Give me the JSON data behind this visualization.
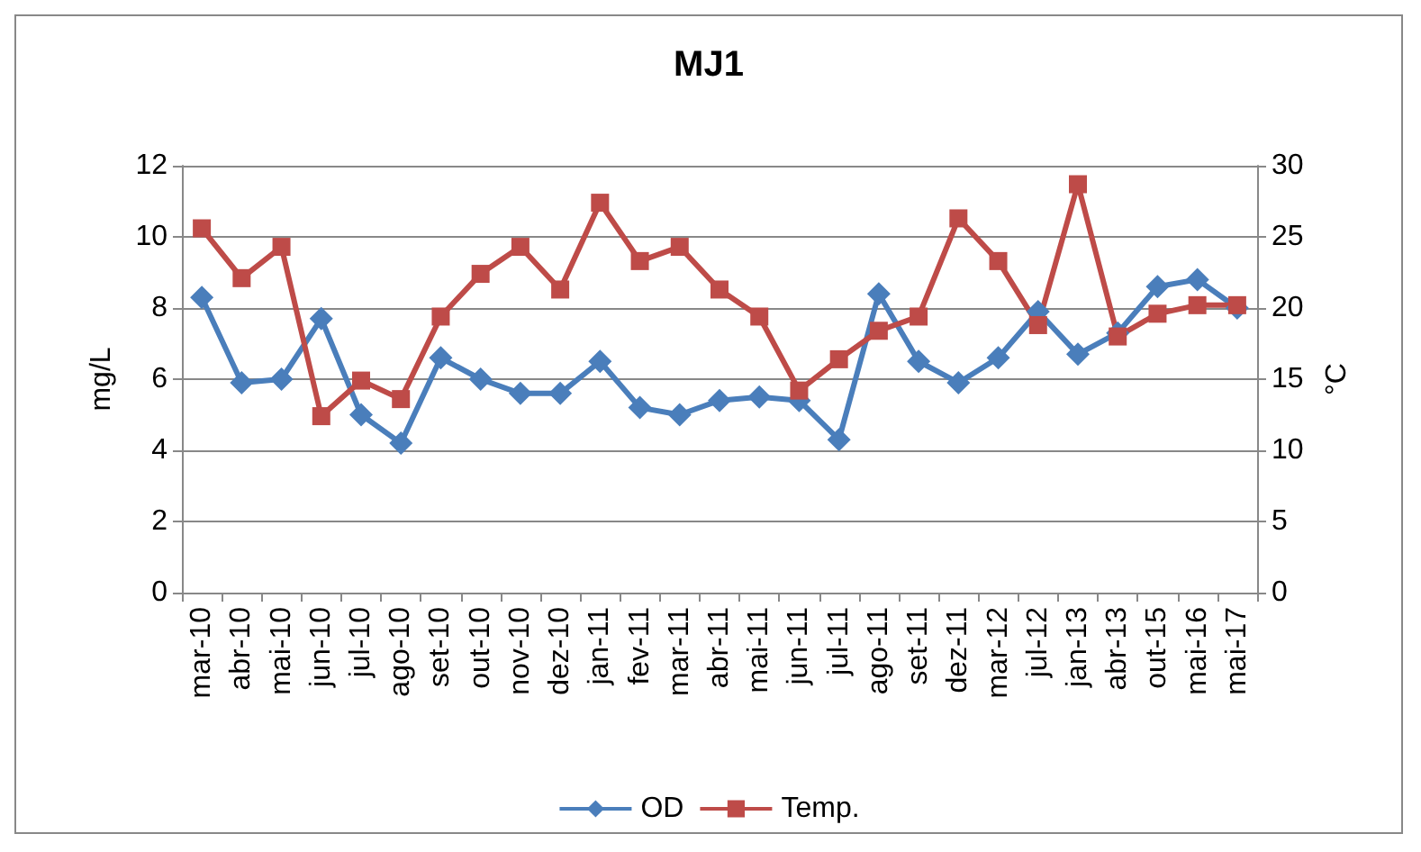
{
  "chart_data": {
    "type": "line",
    "title": "MJ1",
    "ylabel": "mg/L",
    "y2label": "°C",
    "categories": [
      "mar-10",
      "abr-10",
      "mai-10",
      "jun-10",
      "jul-10",
      "ago-10",
      "set-10",
      "out-10",
      "nov-10",
      "dez-10",
      "jan-11",
      "fev-11",
      "mar-11",
      "abr-11",
      "mai-11",
      "jun-11",
      "jul-11",
      "ago-11",
      "set-11",
      "dez-11",
      "mar-12",
      "jul-12",
      "jan-13",
      "abr-13",
      "out-15",
      "mai-16",
      "mai-17"
    ],
    "series": [
      {
        "name": "OD",
        "color": "#4a7ebb",
        "marker": "diamond",
        "values": [
          8.3,
          5.9,
          6.0,
          7.7,
          5.0,
          4.2,
          6.6,
          6.0,
          5.6,
          5.6,
          6.5,
          5.2,
          5.0,
          5.4,
          5.5,
          5.4,
          4.3,
          8.4,
          6.5,
          5.9,
          6.6,
          7.9,
          6.7,
          7.3,
          8.6,
          8.8,
          8.0
        ]
      },
      {
        "name": "Temp.",
        "color": "#be4b48",
        "marker": "square",
        "axis": "y2",
        "values": [
          25.6,
          22.1,
          24.3,
          12.4,
          14.9,
          13.6,
          19.4,
          22.4,
          24.3,
          21.3,
          27.4,
          23.3,
          24.3,
          21.3,
          19.4,
          14.2,
          16.4,
          18.4,
          19.4,
          26.3,
          23.3,
          18.8,
          28.7,
          18.0,
          19.6,
          20.2,
          20.2
        ]
      }
    ],
    "ylim": [
      0,
      12
    ],
    "yticks": [
      0,
      2,
      4,
      6,
      8,
      10,
      12
    ],
    "y2lim": [
      0,
      30
    ],
    "y2ticks": [
      0,
      5,
      10,
      15,
      20,
      25,
      30
    ],
    "grid": "y",
    "legend": "bottom",
    "line_style": "solid"
  }
}
